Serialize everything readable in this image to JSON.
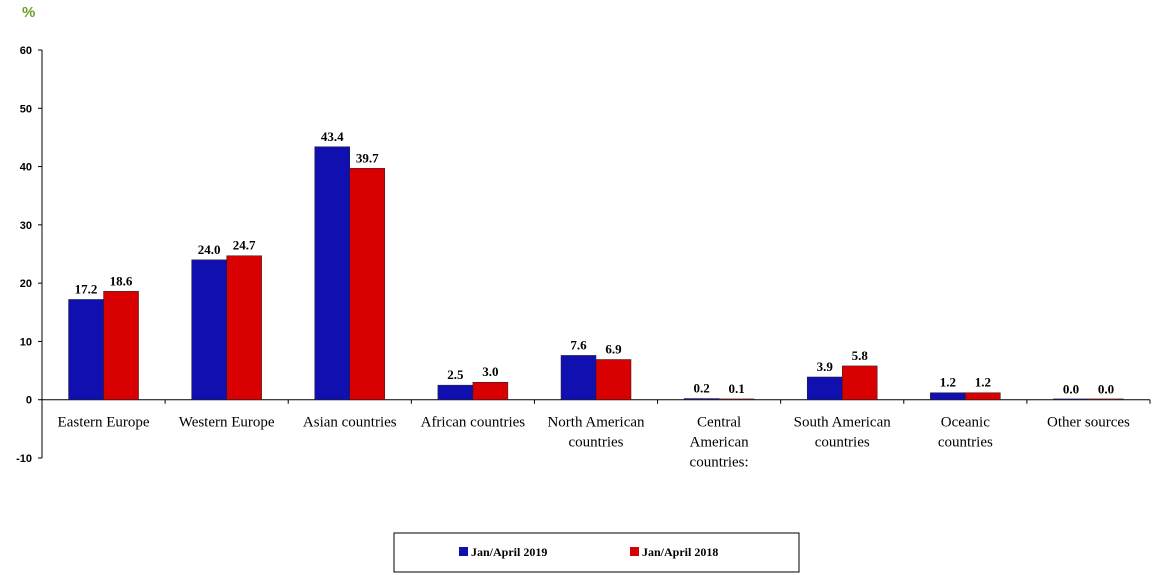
{
  "colors": {
    "series_2019": "#1010b0",
    "series_2018": "#d80000",
    "axis": "#000000",
    "unit": "#6aa121"
  },
  "chart_data": {
    "type": "bar",
    "unit_label": "%",
    "categories": [
      [
        "Eastern Europe"
      ],
      [
        "Western Europe"
      ],
      [
        "Asian countries"
      ],
      [
        "African countries"
      ],
      [
        "North American",
        "countries"
      ],
      [
        "Central",
        "American",
        "countries:"
      ],
      [
        "South American",
        "countries"
      ],
      [
        "Oceanic",
        "countries"
      ],
      [
        "Other sources"
      ]
    ],
    "series": [
      {
        "name": "Jan/April 2019",
        "values": [
          17.2,
          24.0,
          43.4,
          2.5,
          7.6,
          0.2,
          3.9,
          1.2,
          0.0
        ]
      },
      {
        "name": "Jan/April 2018",
        "values": [
          18.6,
          24.7,
          39.7,
          3.0,
          6.9,
          0.1,
          5.8,
          1.2,
          0.0
        ]
      }
    ],
    "ylim": [
      -10,
      60
    ],
    "yticks": [
      60,
      50,
      40,
      30,
      20,
      10,
      0,
      -10
    ],
    "grid": false,
    "legend": "bottom-center"
  }
}
